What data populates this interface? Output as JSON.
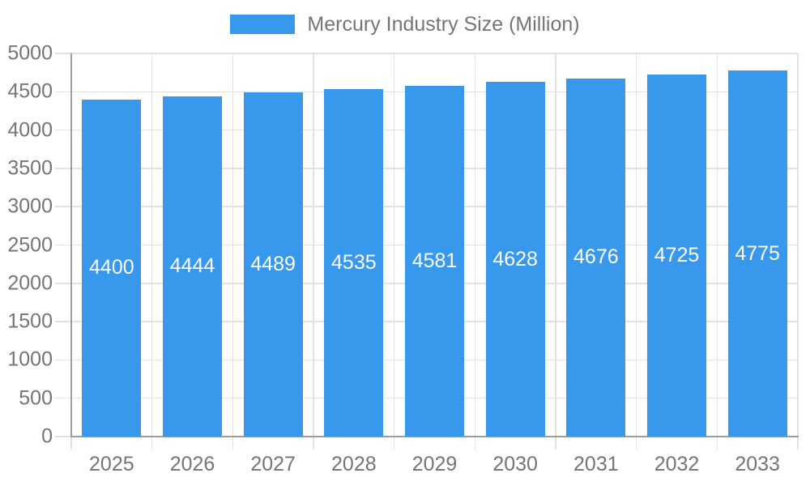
{
  "legend": {
    "label": "Mercury Industry Size (Million)"
  },
  "chart_data": {
    "type": "bar",
    "title": "Mercury Industry Size (Million)",
    "categories": [
      "2025",
      "2026",
      "2027",
      "2028",
      "2029",
      "2030",
      "2031",
      "2032",
      "2033"
    ],
    "values": [
      4400,
      4444,
      4489,
      4535,
      4581,
      4628,
      4676,
      4725,
      4775
    ],
    "xlabel": "",
    "ylabel": "",
    "ylim": [
      0,
      5000
    ],
    "ytick_step": 500,
    "grid": true,
    "legend_position": "top-center",
    "colors": {
      "bar": "#3898EC",
      "value_label": "#FFFFFF",
      "axis_text": "#757575",
      "gridline": "#E2E2E2",
      "axis_line": "#9E9E9E",
      "background": "#FFFFFF"
    }
  }
}
